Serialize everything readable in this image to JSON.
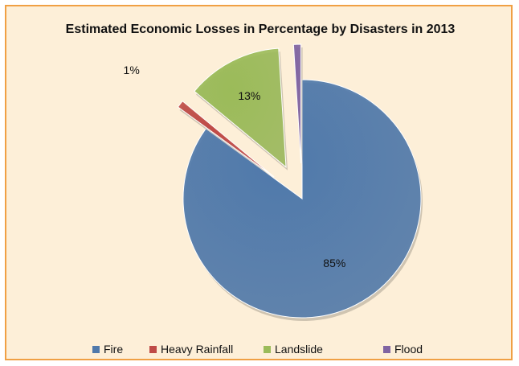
{
  "chart_data": {
    "type": "pie",
    "title": "Estimated Economic Losses in Percentage by Disasters in 2013",
    "slices": [
      {
        "name": "Fire",
        "value": 85,
        "label": "85%",
        "color": "#4f79ab"
      },
      {
        "name": "Heavy Rainfall",
        "value": 1,
        "label": "1%",
        "color": "#bf4b47"
      },
      {
        "name": "Landslide",
        "value": 13,
        "label": "13%",
        "color": "#9bbb59"
      },
      {
        "name": "Flood",
        "value": 1,
        "label": "1%",
        "color": "#8064a2"
      }
    ],
    "exploded": true,
    "style": "3d",
    "legend_position": "bottom"
  },
  "colors": {
    "border": "#f0a044",
    "background": "#fdefd8"
  }
}
